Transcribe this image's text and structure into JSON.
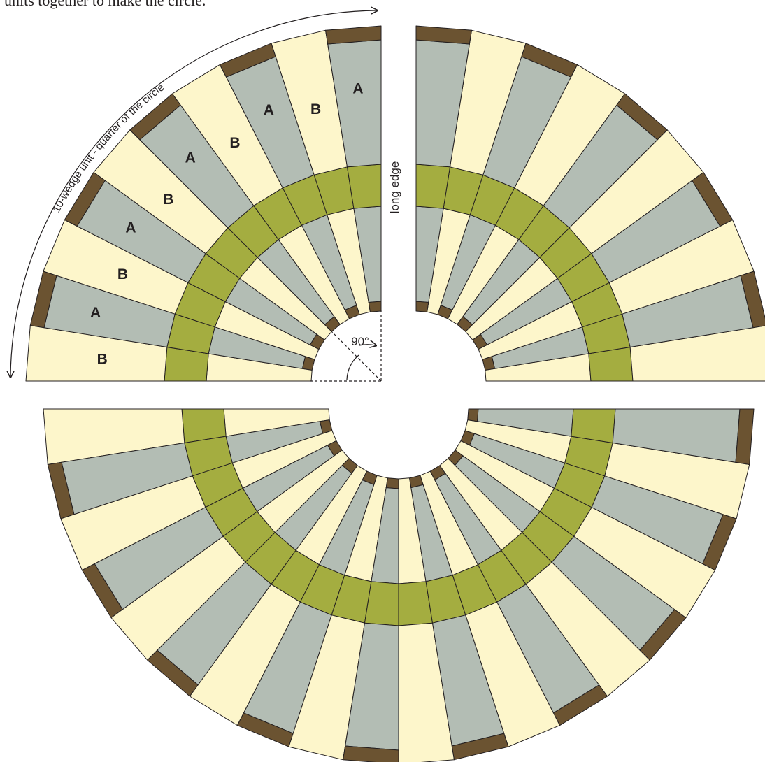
{
  "intro_text_fragment": "units together to make the circle.",
  "labels": {
    "arc_caption": "10-wedge unit - quarter of the circle",
    "long_edge": "long edge",
    "angle": "90°"
  },
  "wedge_labels": [
    "B",
    "A",
    "B",
    "A",
    "B",
    "A",
    "B",
    "A",
    "B",
    "A"
  ],
  "colors": {
    "cream": "#fdf6cb",
    "gray": "#b3bdb4",
    "green": "#a4ad40",
    "brown": "#6b5331",
    "outline": "#231f20"
  },
  "wedges_per_quarter": 10,
  "quarters_shown": [
    "top-left quarter (labeled)",
    "top-right quarter",
    "bottom half (two quarters)"
  ]
}
